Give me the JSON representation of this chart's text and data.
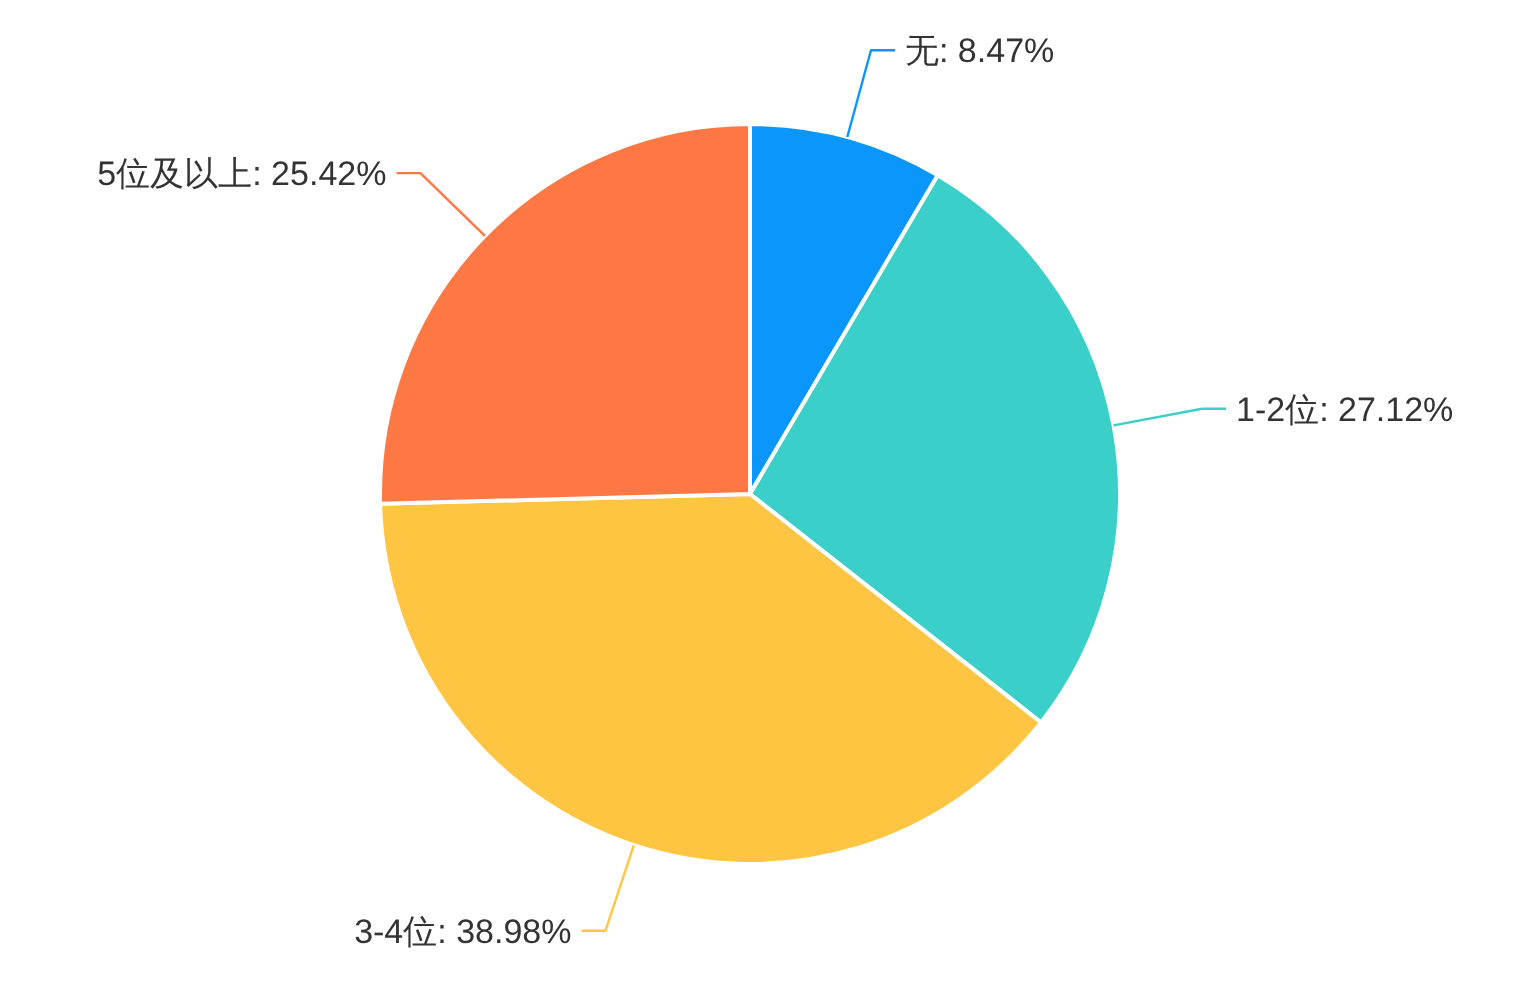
{
  "chart_data": {
    "type": "pie",
    "categories": [
      "无",
      "1-2位",
      "3-4位",
      "5位及以上"
    ],
    "values": [
      8.47,
      27.12,
      38.98,
      25.42
    ],
    "value_labels": [
      "8.47%",
      "27.12%",
      "38.98%",
      "25.42%"
    ],
    "colors": [
      "#0a96fb",
      "#3acfc8",
      "#fdc541",
      "#fe7845"
    ]
  }
}
